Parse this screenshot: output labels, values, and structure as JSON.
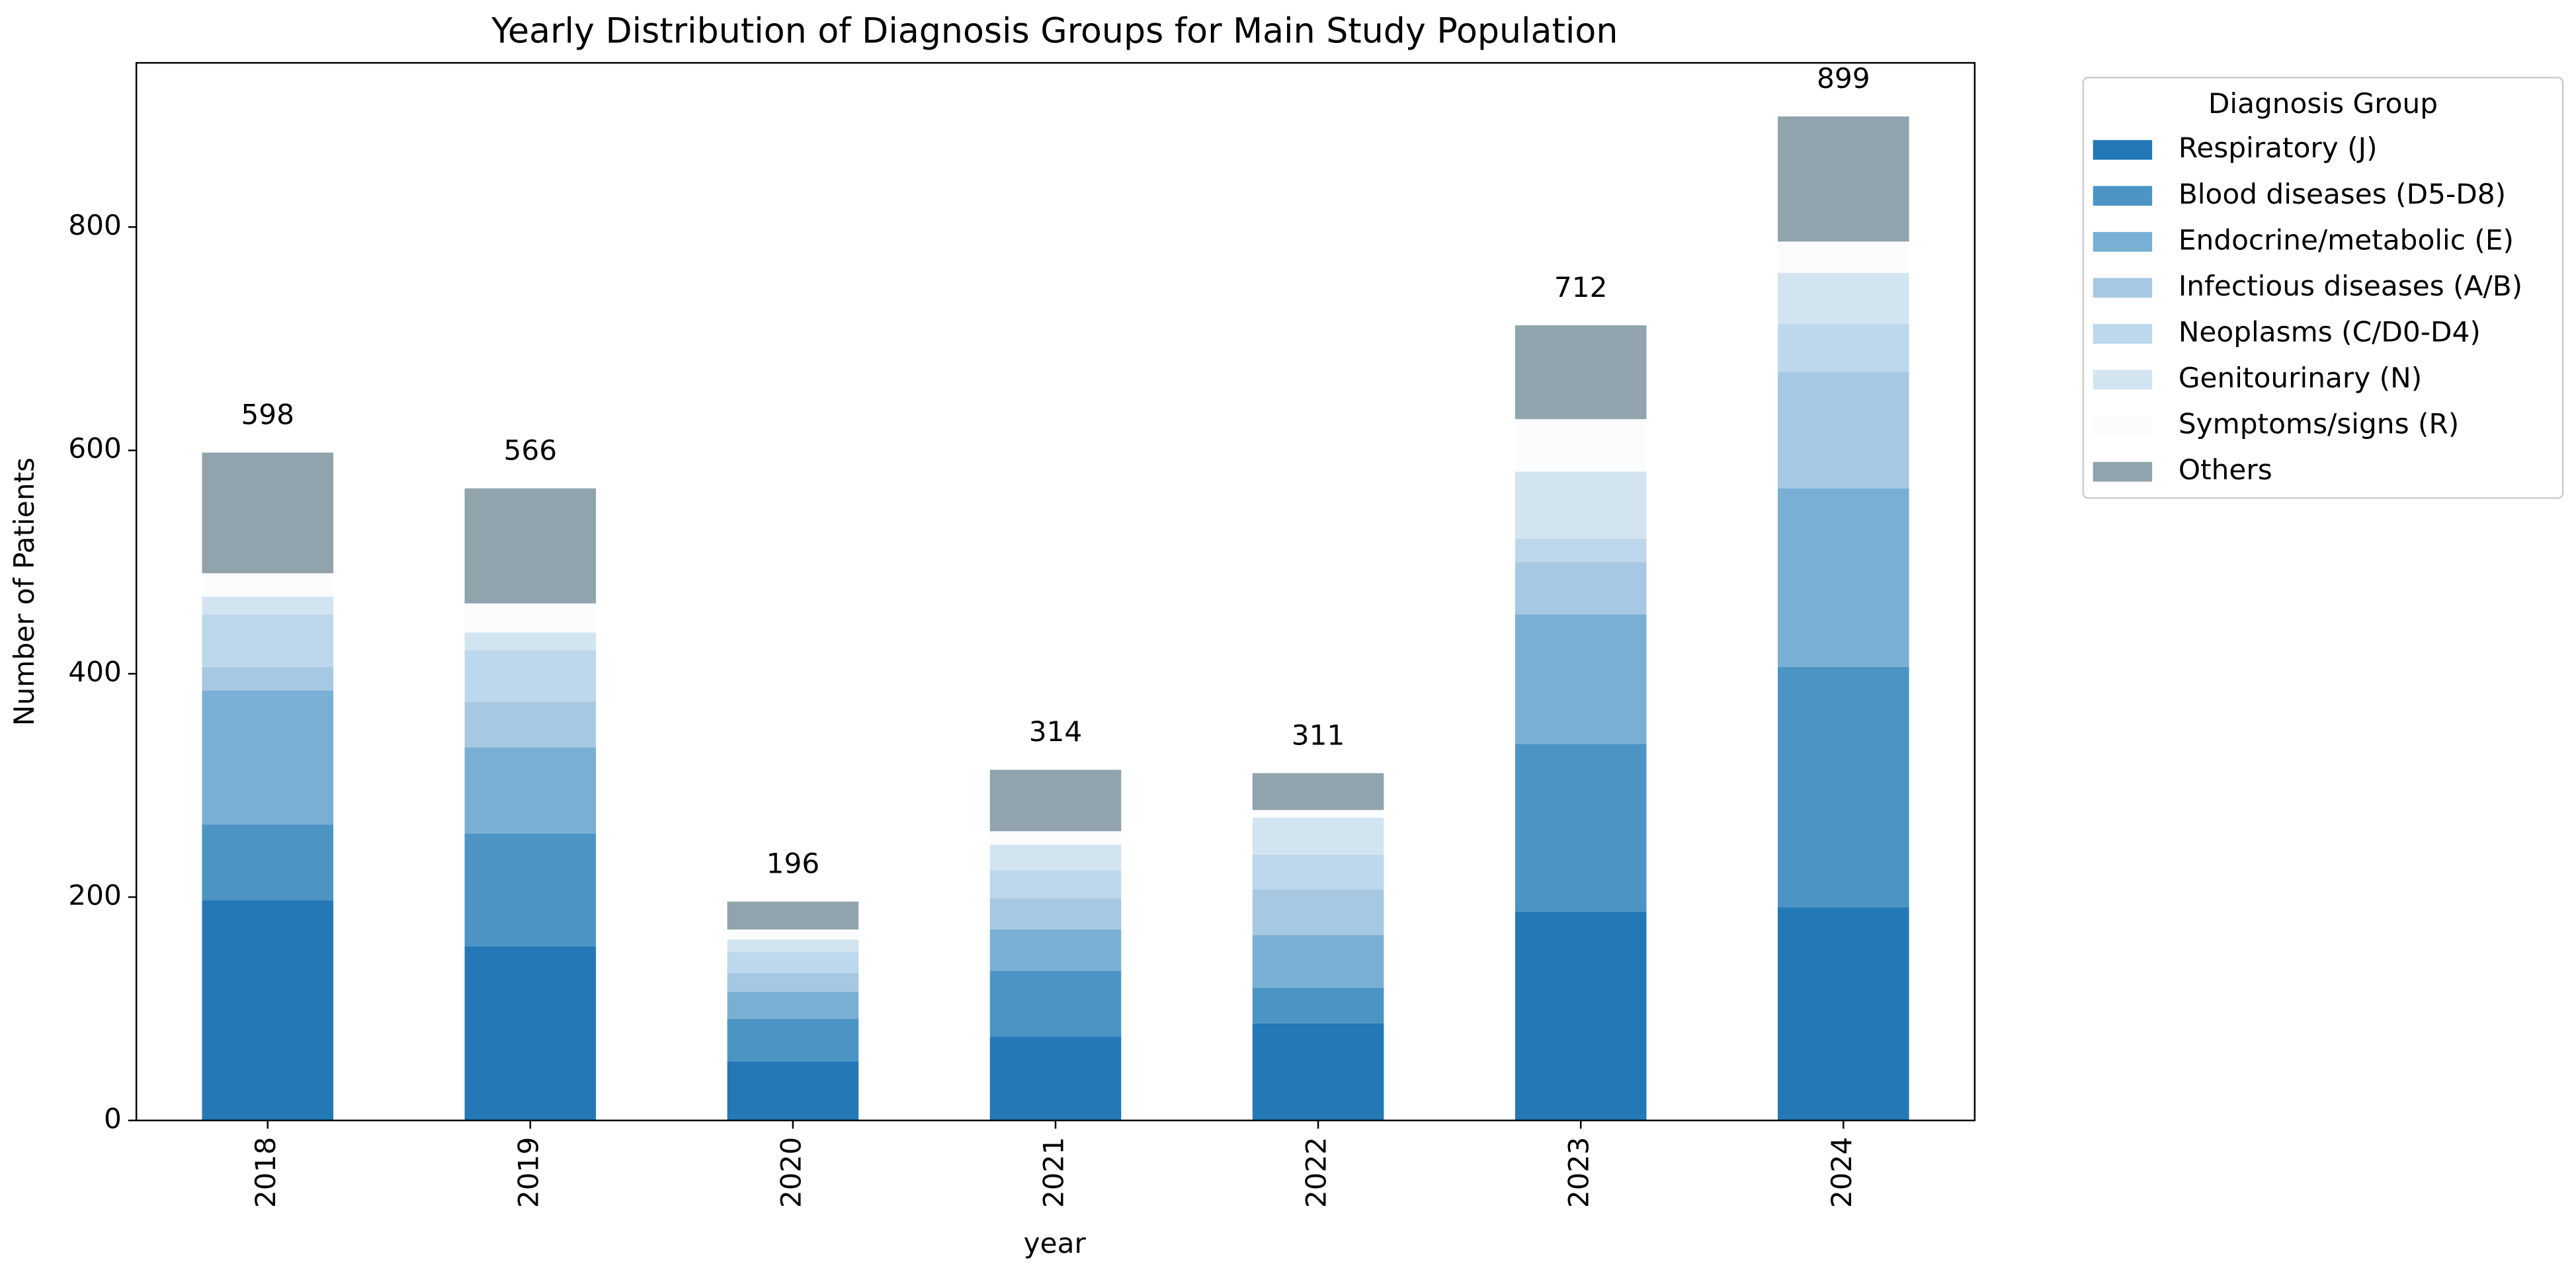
{
  "chart_data": {
    "type": "stacked_bar",
    "title": "Yearly Distribution of Diagnosis Groups for Main Study Population",
    "xlabel": "year",
    "ylabel": "Number of Patients",
    "categories": [
      "2018",
      "2019",
      "2020",
      "2021",
      "2022",
      "2023",
      "2024"
    ],
    "series": [
      {
        "name": "Respiratory (J)",
        "color": "#2378b5",
        "values": [
          197,
          156,
          53,
          75,
          87,
          187,
          191
        ]
      },
      {
        "name": "Blood diseases (D5-D8)",
        "color": "#4c94c4",
        "values": [
          68,
          101,
          38,
          59,
          32,
          150,
          215
        ]
      },
      {
        "name": "Endocrine/metabolic (E)",
        "color": "#7aafd4",
        "values": [
          120,
          77,
          24,
          37,
          47,
          116,
          160
        ]
      },
      {
        "name": "Infectious diseases (A/B)",
        "color": "#a6c8e2",
        "values": [
          21,
          41,
          17,
          28,
          41,
          47,
          104
        ]
      },
      {
        "name": "Neoplasms (C/D0-D4)",
        "color": "#bdd7ec",
        "values": [
          47,
          46,
          19,
          25,
          31,
          21,
          43
        ]
      },
      {
        "name": "Genitourinary (N)",
        "color": "#d3e4f1",
        "values": [
          16,
          16,
          11,
          23,
          33,
          60,
          46
        ]
      },
      {
        "name": "Symptoms/signs (R)",
        "color": "#fbfcfe",
        "values": [
          21,
          26,
          9,
          12,
          7,
          47,
          28
        ]
      },
      {
        "name": "Others",
        "color": "#91a4ad",
        "values": [
          108,
          103,
          25,
          55,
          33,
          84,
          112
        ]
      }
    ],
    "totals": [
      598,
      566,
      196,
      314,
      311,
      712,
      899
    ],
    "legend_title": "Diagnosis Group",
    "legend": "outside upper right",
    "ylim": [
      0,
      947
    ],
    "yticks": [
      0,
      200,
      400,
      600,
      800
    ],
    "grid": false
  }
}
